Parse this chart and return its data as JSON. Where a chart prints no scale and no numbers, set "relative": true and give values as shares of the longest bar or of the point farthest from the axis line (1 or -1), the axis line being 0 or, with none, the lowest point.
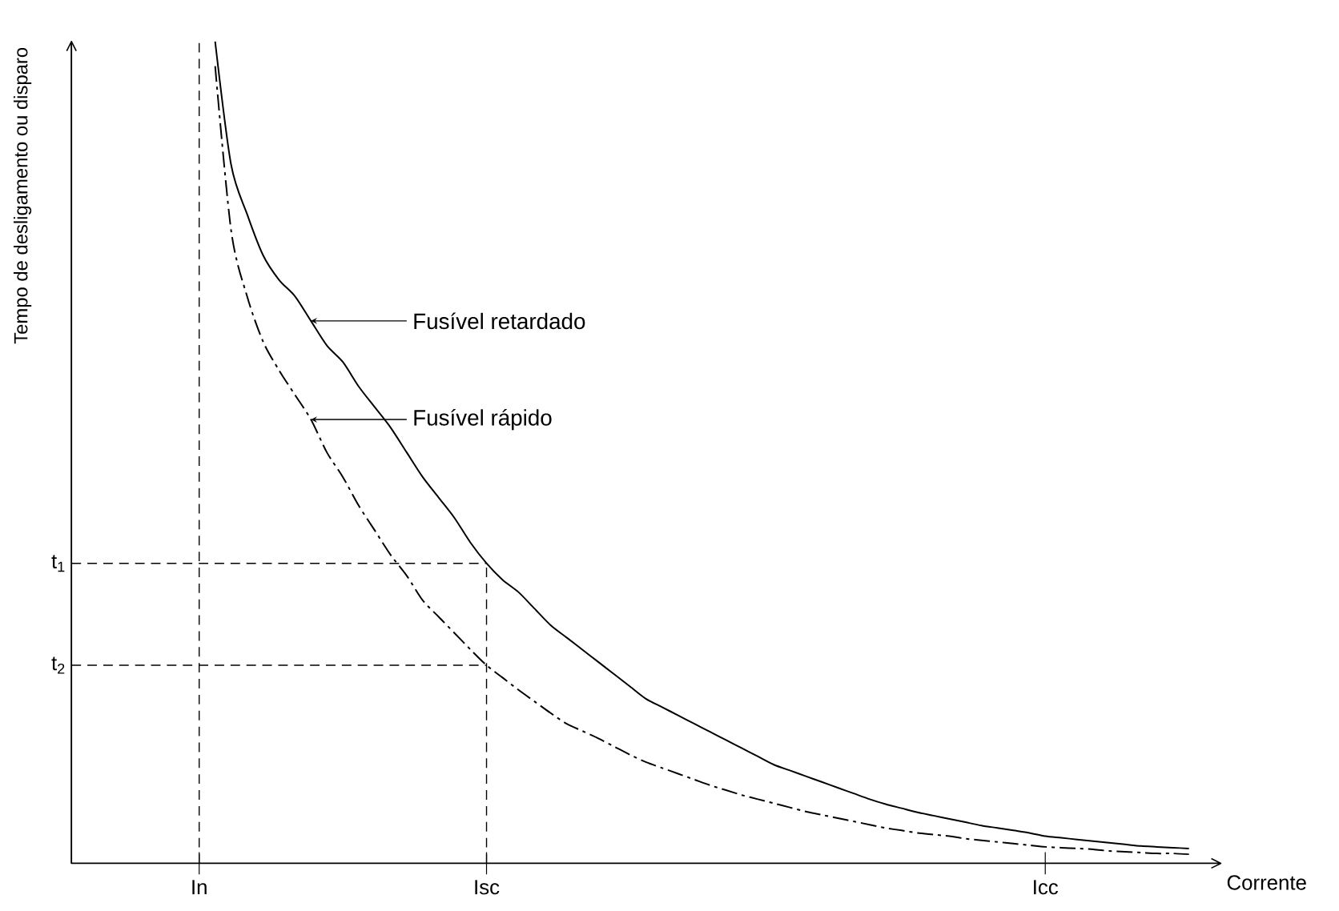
{
  "chart_data": {
    "type": "line",
    "relative": true,
    "xlabel": "Corrente",
    "ylabel": "Tempo de desligamento ou disparo",
    "categories": [
      null,
      null,
      null,
      null,
      null,
      null,
      null,
      null,
      "In",
      null,
      null,
      null,
      null,
      null,
      null,
      null,
      null,
      null,
      null,
      null,
      null,
      null,
      null,
      null,
      null,
      null,
      "Isc",
      null,
      null,
      null,
      null,
      null,
      null,
      null,
      null,
      null,
      null,
      null,
      null,
      null,
      null,
      null,
      null,
      null,
      null,
      null,
      null,
      null,
      null,
      null,
      null,
      null,
      null,
      null,
      null,
      null,
      null,
      null,
      null,
      null,
      null,
      "Icc",
      null,
      null,
      null,
      null,
      null,
      null,
      null,
      null,
      null,
      null,
      null
    ],
    "series": [
      {
        "color": "#000000",
        "line_style": "solid",
        "values": [
          null,
          null,
          null,
          null,
          null,
          null,
          null,
          null,
          null,
          1,
          0.85,
          0.79,
          0.74,
          0.71,
          0.69,
          0.66,
          0.63,
          0.61,
          0.58,
          0.555,
          0.53,
          0.5,
          0.47,
          0.445,
          0.42,
          0.39,
          0.365,
          0.345,
          0.33,
          0.31,
          0.29,
          0.275,
          0.26,
          0.245,
          0.23,
          0.215,
          0.2,
          0.19,
          0.18,
          0.17,
          0.16,
          0.15,
          0.14,
          0.13,
          0.12,
          0.113,
          0.106,
          0.099,
          0.092,
          0.085,
          0.078,
          0.072,
          0.067,
          0.062,
          0.058,
          0.054,
          0.05,
          0.046,
          0.043,
          0.04,
          0.037,
          0.033,
          0.031,
          0.029,
          0.027,
          0.025,
          0.023,
          0.021,
          0.02,
          0.019,
          0.018,
          null,
          null
        ]
      },
      {
        "color": "#000000",
        "line_style": "dashed",
        "values": [
          null,
          null,
          null,
          null,
          null,
          null,
          null,
          null,
          null,
          0.97,
          0.77,
          0.69,
          0.635,
          0.6,
          0.57,
          0.54,
          0.5,
          0.47,
          0.435,
          0.405,
          0.375,
          0.35,
          0.32,
          0.3,
          0.28,
          0.26,
          0.241,
          0.226,
          0.211,
          0.197,
          0.183,
          0.17,
          0.161,
          0.152,
          0.142,
          0.132,
          0.123,
          0.116,
          0.109,
          0.102,
          0.095,
          0.089,
          0.083,
          0.078,
          0.073,
          0.068,
          0.063,
          0.059,
          0.055,
          0.051,
          0.047,
          0.043,
          0.04,
          0.037,
          0.035,
          0.033,
          0.03,
          0.028,
          0.026,
          0.024,
          0.022,
          0.02,
          0.019,
          0.018,
          0.017,
          0.015,
          0.014,
          0.013,
          0.012,
          0.012,
          0.011,
          null,
          null
        ]
      }
    ],
    "ref_lines": [
      {
        "axis": "x",
        "value": "In",
        "line_style": "dashed"
      },
      {
        "axis": "x",
        "value": "Isc",
        "line_style": "dashed"
      },
      {
        "axis": "y",
        "value": 0.365,
        "label": "t$_{1}$",
        "line_style": "dashed"
      },
      {
        "axis": "y",
        "value": 0.241,
        "label": "t$_{2}$",
        "line_style": "dashed"
      }
    ],
    "annotations": [
      "Fusível retardado",
      "Fusível rápido"
    ]
  }
}
